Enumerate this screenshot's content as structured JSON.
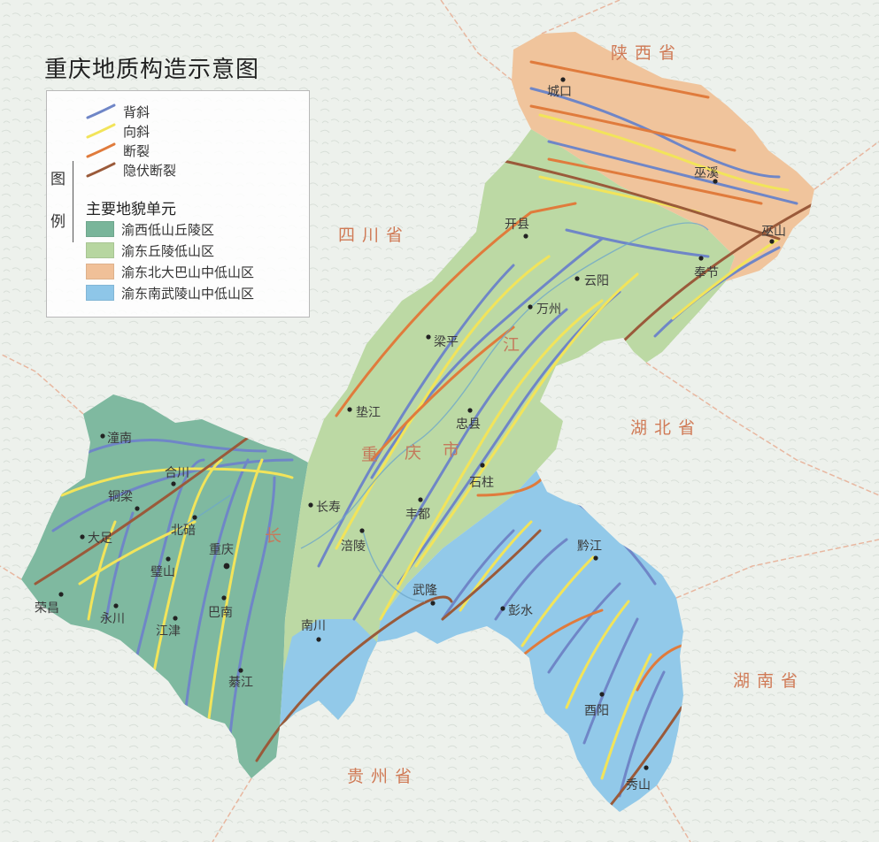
{
  "title": "重庆地质构造示意图",
  "legend": {
    "heading": [
      "图",
      "例"
    ],
    "line_items": [
      {
        "label": "背斜",
        "color": "#6f86c7"
      },
      {
        "label": "向斜",
        "color": "#f2e45a"
      },
      {
        "label": "断裂",
        "color": "#e07b3c"
      },
      {
        "label": "隐伏断裂",
        "color": "#9a5a3a"
      }
    ],
    "units_heading": "主要地貌单元",
    "fill_items": [
      {
        "label": "渝西低山丘陵区",
        "color": "#79b59a"
      },
      {
        "label": "渝东丘陵低山区",
        "color": "#b7d6a0"
      },
      {
        "label": "渝东北大巴山中低山区",
        "color": "#f0c098"
      },
      {
        "label": "渝东南武陵山中低山区",
        "color": "#8ec6e8"
      }
    ]
  },
  "provinces": {
    "shaanxi": "陕西省",
    "sichuan": "四川省",
    "hubei": "湖北省",
    "hunan": "湖南省",
    "guizhou": "贵州省"
  },
  "region_labels": {
    "chongqing_1": "重",
    "chongqing_2": "庆",
    "chongqing_3": "市",
    "changjiang": "长",
    "jiang": "江"
  },
  "places": {
    "chengkou": "城口",
    "wuxi": "巫溪",
    "kaixian": "开县",
    "wushan": "巫山",
    "fengjie": "奉节",
    "yunyang": "云阳",
    "wanzhou": "万州",
    "liangping": "梁平",
    "dianjiang": "垫江",
    "zhongxian": "忠县",
    "shizhu": "石柱",
    "fengdu": "丰都",
    "changshou": "长寿",
    "fuling": "涪陵",
    "wulong": "武隆",
    "pengshui": "彭水",
    "qianjiang": "黔江",
    "youyang": "酉阳",
    "xiushan": "秀山",
    "nanchuan": "南川",
    "qijiang": "綦江",
    "banan": "巴南",
    "jiangjin": "江津",
    "chongqing": "重庆",
    "bishan": "璧山",
    "beibei": "北碚",
    "hechuan": "合川",
    "tongliang": "铜梁",
    "tongnan": "潼南",
    "dazu": "大足",
    "rongchang": "荣昌",
    "yongchuan": "永川"
  }
}
